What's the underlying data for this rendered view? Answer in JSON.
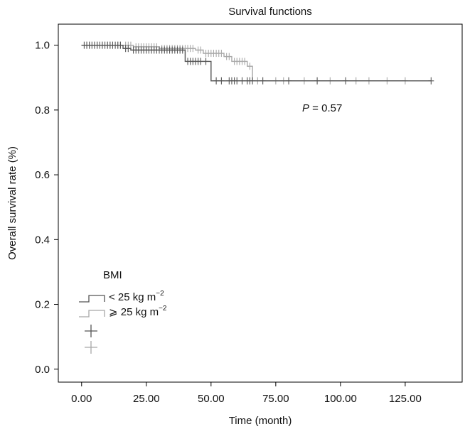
{
  "chart_data": {
    "type": "line",
    "title": "Survival functions",
    "xlabel": "Time (month)",
    "ylabel": "Overall survival rate (%)",
    "xlim": [
      -9,
      147
    ],
    "ylim": [
      -0.04,
      1.065
    ],
    "x_ticks": [
      0,
      25,
      50,
      75,
      100,
      125
    ],
    "x_tick_labels": [
      "0.00",
      "25.00",
      "50.00",
      "75.00",
      "100.00",
      "125.00"
    ],
    "y_ticks": [
      0.0,
      0.2,
      0.4,
      0.6,
      0.8,
      1.0
    ],
    "y_tick_labels": [
      "0.0",
      "0.2",
      "0.4",
      "0.6",
      "0.8",
      "1.0"
    ],
    "annotation": {
      "prefix": "P",
      "text": " = 0.57"
    },
    "legend": {
      "title": "BMI",
      "placement": "bottom-left",
      "entries": [
        {
          "text": "< 25 kg m",
          "sup": "−2"
        },
        {
          "text": "⩾ 25 kg m",
          "sup": "−2"
        }
      ]
    },
    "colors": {
      "series_1": "#555555",
      "series_2": "#a8a8a8"
    },
    "series": [
      {
        "steps": [
          [
            0,
            1.0
          ],
          [
            16,
            1.0
          ],
          [
            16,
            0.99
          ],
          [
            19,
            0.99
          ],
          [
            19,
            0.985
          ],
          [
            40,
            0.985
          ],
          [
            40,
            0.95
          ],
          [
            50,
            0.95
          ],
          [
            50,
            0.89
          ],
          [
            135,
            0.89
          ]
        ],
        "censors": [
          [
            1,
            1.0
          ],
          [
            2,
            1.0
          ],
          [
            3,
            1.0
          ],
          [
            4,
            1.0
          ],
          [
            5,
            1.0
          ],
          [
            6,
            1.0
          ],
          [
            7,
            1.0
          ],
          [
            8,
            1.0
          ],
          [
            9,
            1.0
          ],
          [
            10,
            1.0
          ],
          [
            11,
            1.0
          ],
          [
            12,
            1.0
          ],
          [
            13,
            1.0
          ],
          [
            14,
            1.0
          ],
          [
            15,
            1.0
          ],
          [
            17,
            0.99
          ],
          [
            18,
            0.99
          ],
          [
            20,
            0.985
          ],
          [
            21,
            0.985
          ],
          [
            22,
            0.985
          ],
          [
            23,
            0.985
          ],
          [
            24,
            0.985
          ],
          [
            25,
            0.985
          ],
          [
            26,
            0.985
          ],
          [
            27,
            0.985
          ],
          [
            28,
            0.985
          ],
          [
            29,
            0.985
          ],
          [
            30,
            0.985
          ],
          [
            31,
            0.985
          ],
          [
            32,
            0.985
          ],
          [
            33,
            0.985
          ],
          [
            34,
            0.985
          ],
          [
            35,
            0.985
          ],
          [
            36,
            0.985
          ],
          [
            37,
            0.985
          ],
          [
            38,
            0.985
          ],
          [
            39,
            0.985
          ],
          [
            41,
            0.95
          ],
          [
            42,
            0.95
          ],
          [
            43,
            0.95
          ],
          [
            44,
            0.95
          ],
          [
            45,
            0.95
          ],
          [
            46,
            0.95
          ],
          [
            48,
            0.95
          ],
          [
            52,
            0.89
          ],
          [
            54,
            0.89
          ],
          [
            57,
            0.89
          ],
          [
            58,
            0.89
          ],
          [
            59,
            0.89
          ],
          [
            60,
            0.89
          ],
          [
            62,
            0.89
          ],
          [
            64,
            0.89
          ],
          [
            65,
            0.89
          ],
          [
            66,
            0.89
          ],
          [
            70,
            0.89
          ],
          [
            80,
            0.89
          ],
          [
            91,
            0.89
          ],
          [
            102,
            0.89
          ],
          [
            135,
            0.89
          ]
        ]
      },
      {
        "steps": [
          [
            0,
            1.0
          ],
          [
            20,
            1.0
          ],
          [
            20,
            0.995
          ],
          [
            30,
            0.995
          ],
          [
            30,
            0.99
          ],
          [
            44,
            0.99
          ],
          [
            44,
            0.985
          ],
          [
            47,
            0.985
          ],
          [
            47,
            0.975
          ],
          [
            55,
            0.975
          ],
          [
            55,
            0.965
          ],
          [
            58,
            0.965
          ],
          [
            58,
            0.95
          ],
          [
            64,
            0.95
          ],
          [
            64,
            0.935
          ],
          [
            66,
            0.935
          ],
          [
            66,
            0.89
          ],
          [
            125,
            0.89
          ]
        ],
        "censors": [
          [
            2,
            1.0
          ],
          [
            3,
            1.0
          ],
          [
            5,
            1.0
          ],
          [
            6,
            1.0
          ],
          [
            8,
            1.0
          ],
          [
            9,
            1.0
          ],
          [
            10,
            1.0
          ],
          [
            11,
            1.0
          ],
          [
            12,
            1.0
          ],
          [
            14,
            1.0
          ],
          [
            15,
            1.0
          ],
          [
            17,
            1.0
          ],
          [
            18,
            1.0
          ],
          [
            19,
            1.0
          ],
          [
            21,
            0.995
          ],
          [
            22,
            0.995
          ],
          [
            23,
            0.995
          ],
          [
            24,
            0.995
          ],
          [
            25,
            0.995
          ],
          [
            26,
            0.995
          ],
          [
            27,
            0.995
          ],
          [
            28,
            0.995
          ],
          [
            29,
            0.995
          ],
          [
            31,
            0.99
          ],
          [
            32,
            0.99
          ],
          [
            33,
            0.99
          ],
          [
            34,
            0.99
          ],
          [
            35,
            0.99
          ],
          [
            36,
            0.99
          ],
          [
            37,
            0.99
          ],
          [
            38,
            0.99
          ],
          [
            39,
            0.99
          ],
          [
            40,
            0.99
          ],
          [
            41,
            0.99
          ],
          [
            42,
            0.99
          ],
          [
            43,
            0.99
          ],
          [
            45,
            0.985
          ],
          [
            46,
            0.985
          ],
          [
            48,
            0.975
          ],
          [
            49,
            0.975
          ],
          [
            50,
            0.975
          ],
          [
            51,
            0.975
          ],
          [
            52,
            0.975
          ],
          [
            53,
            0.975
          ],
          [
            54,
            0.975
          ],
          [
            56,
            0.965
          ],
          [
            57,
            0.965
          ],
          [
            59,
            0.95
          ],
          [
            60,
            0.95
          ],
          [
            61,
            0.95
          ],
          [
            62,
            0.95
          ],
          [
            63,
            0.95
          ],
          [
            65,
            0.935
          ],
          [
            68,
            0.89
          ],
          [
            75,
            0.89
          ],
          [
            78,
            0.89
          ],
          [
            86,
            0.89
          ],
          [
            96,
            0.89
          ],
          [
            106,
            0.89
          ],
          [
            111,
            0.89
          ],
          [
            118,
            0.89
          ],
          [
            125,
            0.89
          ]
        ]
      }
    ]
  }
}
